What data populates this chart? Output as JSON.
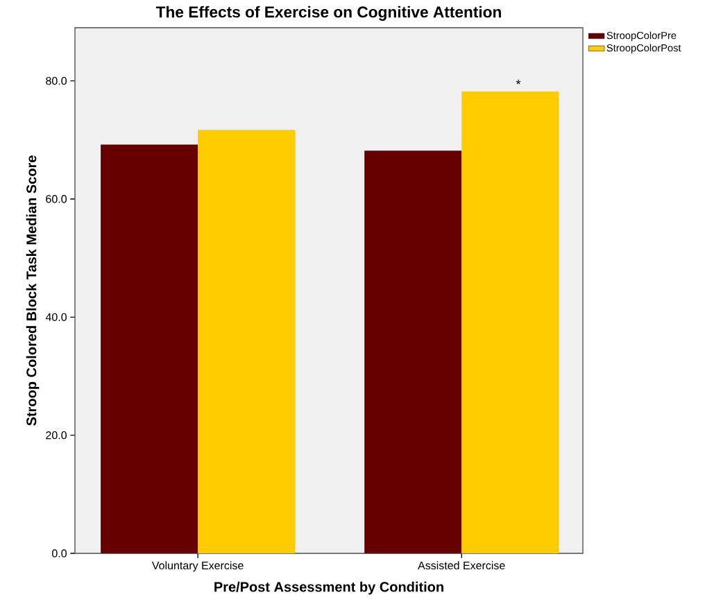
{
  "chart_data": {
    "type": "bar",
    "title": "The Effects of Exercise on Cognitive Attention",
    "xlabel": "Pre/Post Assessment by Condition",
    "ylabel": "Stroop Colored Block Task Median Score",
    "categories": [
      "Voluntary Exercise",
      "Assisted Exercise"
    ],
    "series": [
      {
        "name": "StroopColorPre",
        "color": "#660000",
        "values": [
          69.2,
          68.2
        ]
      },
      {
        "name": "StroopColorPost",
        "color": "#ffcc00",
        "values": [
          71.7,
          78.2
        ]
      }
    ],
    "ylim": [
      0,
      89
    ],
    "yticks": [
      {
        "value": 0,
        "label": "0.0"
      },
      {
        "value": 20,
        "label": "20.0"
      },
      {
        "value": 40,
        "label": "40.0"
      },
      {
        "value": 60,
        "label": "60.0"
      },
      {
        "value": 80,
        "label": "80.0"
      }
    ],
    "annotations": [
      "*"
    ],
    "legend": "top right",
    "grid": false
  }
}
